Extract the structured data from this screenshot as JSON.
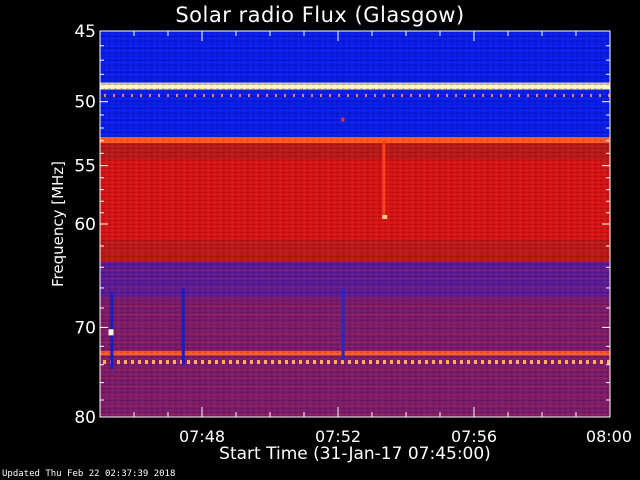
{
  "chart_data": {
    "type": "heatmap",
    "title": "Solar radio Flux (Glasgow)",
    "xlabel": "Start Time (31-Jan-17 07:45:00)",
    "ylabel": "Frequency [MHz]",
    "x_ticks": [
      "07:48",
      "07:52",
      "07:56",
      "08:00"
    ],
    "x_tick_minutes": [
      3,
      7,
      11,
      15
    ],
    "x_range_minutes": [
      0,
      15
    ],
    "y_ticks": [
      45,
      50,
      55,
      60,
      70,
      80
    ],
    "y_scale": "log",
    "y_range": [
      45,
      80
    ],
    "bands": [
      {
        "from": 45,
        "to": 48.6,
        "level": "blue"
      },
      {
        "from": 48.6,
        "to": 49.1,
        "level": "peak"
      },
      {
        "from": 49.1,
        "to": 52.7,
        "level": "blue"
      },
      {
        "from": 52.7,
        "to": 53.2,
        "level": "high"
      },
      {
        "from": 53.2,
        "to": 54.5,
        "level": "red-dark"
      },
      {
        "from": 54.5,
        "to": 61.5,
        "level": "red"
      },
      {
        "from": 61.5,
        "to": 63.5,
        "level": "red-dark"
      },
      {
        "from": 63.5,
        "to": 67.0,
        "level": "purple"
      },
      {
        "from": 67.0,
        "to": 72.5,
        "level": "purple-red"
      },
      {
        "from": 72.5,
        "to": 73.0,
        "level": "high"
      },
      {
        "from": 73.0,
        "to": 80,
        "level": "purple-red"
      }
    ]
  },
  "footer": "Updated Thu Feb 22 02:37:39 2018"
}
